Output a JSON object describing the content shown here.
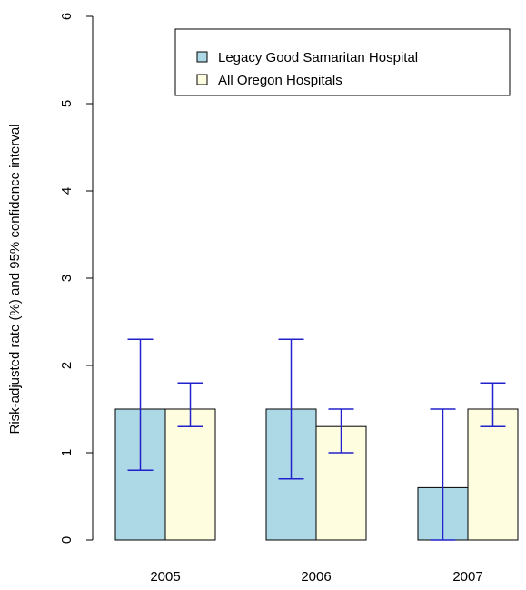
{
  "chart_data": {
    "type": "bar",
    "categories": [
      "2005",
      "2006",
      "2007"
    ],
    "ylabel": "Risk-adjusted rate (%) and 95% confidence interval",
    "xlabel": "",
    "ylim": [
      0,
      6
    ],
    "yticks": [
      0,
      1,
      2,
      3,
      4,
      5,
      6
    ],
    "series": [
      {
        "name": "Legacy Good Samaritan Hospital",
        "color": "#add8e6",
        "values": [
          1.5,
          1.5,
          0.6
        ],
        "ci_low": [
          0.8,
          0.7,
          0.0
        ],
        "ci_high": [
          2.3,
          2.3,
          1.5
        ]
      },
      {
        "name": "All Oregon Hospitals",
        "color": "#fffde0",
        "values": [
          1.5,
          1.3,
          1.5
        ],
        "ci_low": [
          1.3,
          1.0,
          1.3
        ],
        "ci_high": [
          1.8,
          1.5,
          1.8
        ]
      }
    ],
    "error_bar_color": "#2222cc",
    "legend_position": "top-right",
    "grid": false
  }
}
